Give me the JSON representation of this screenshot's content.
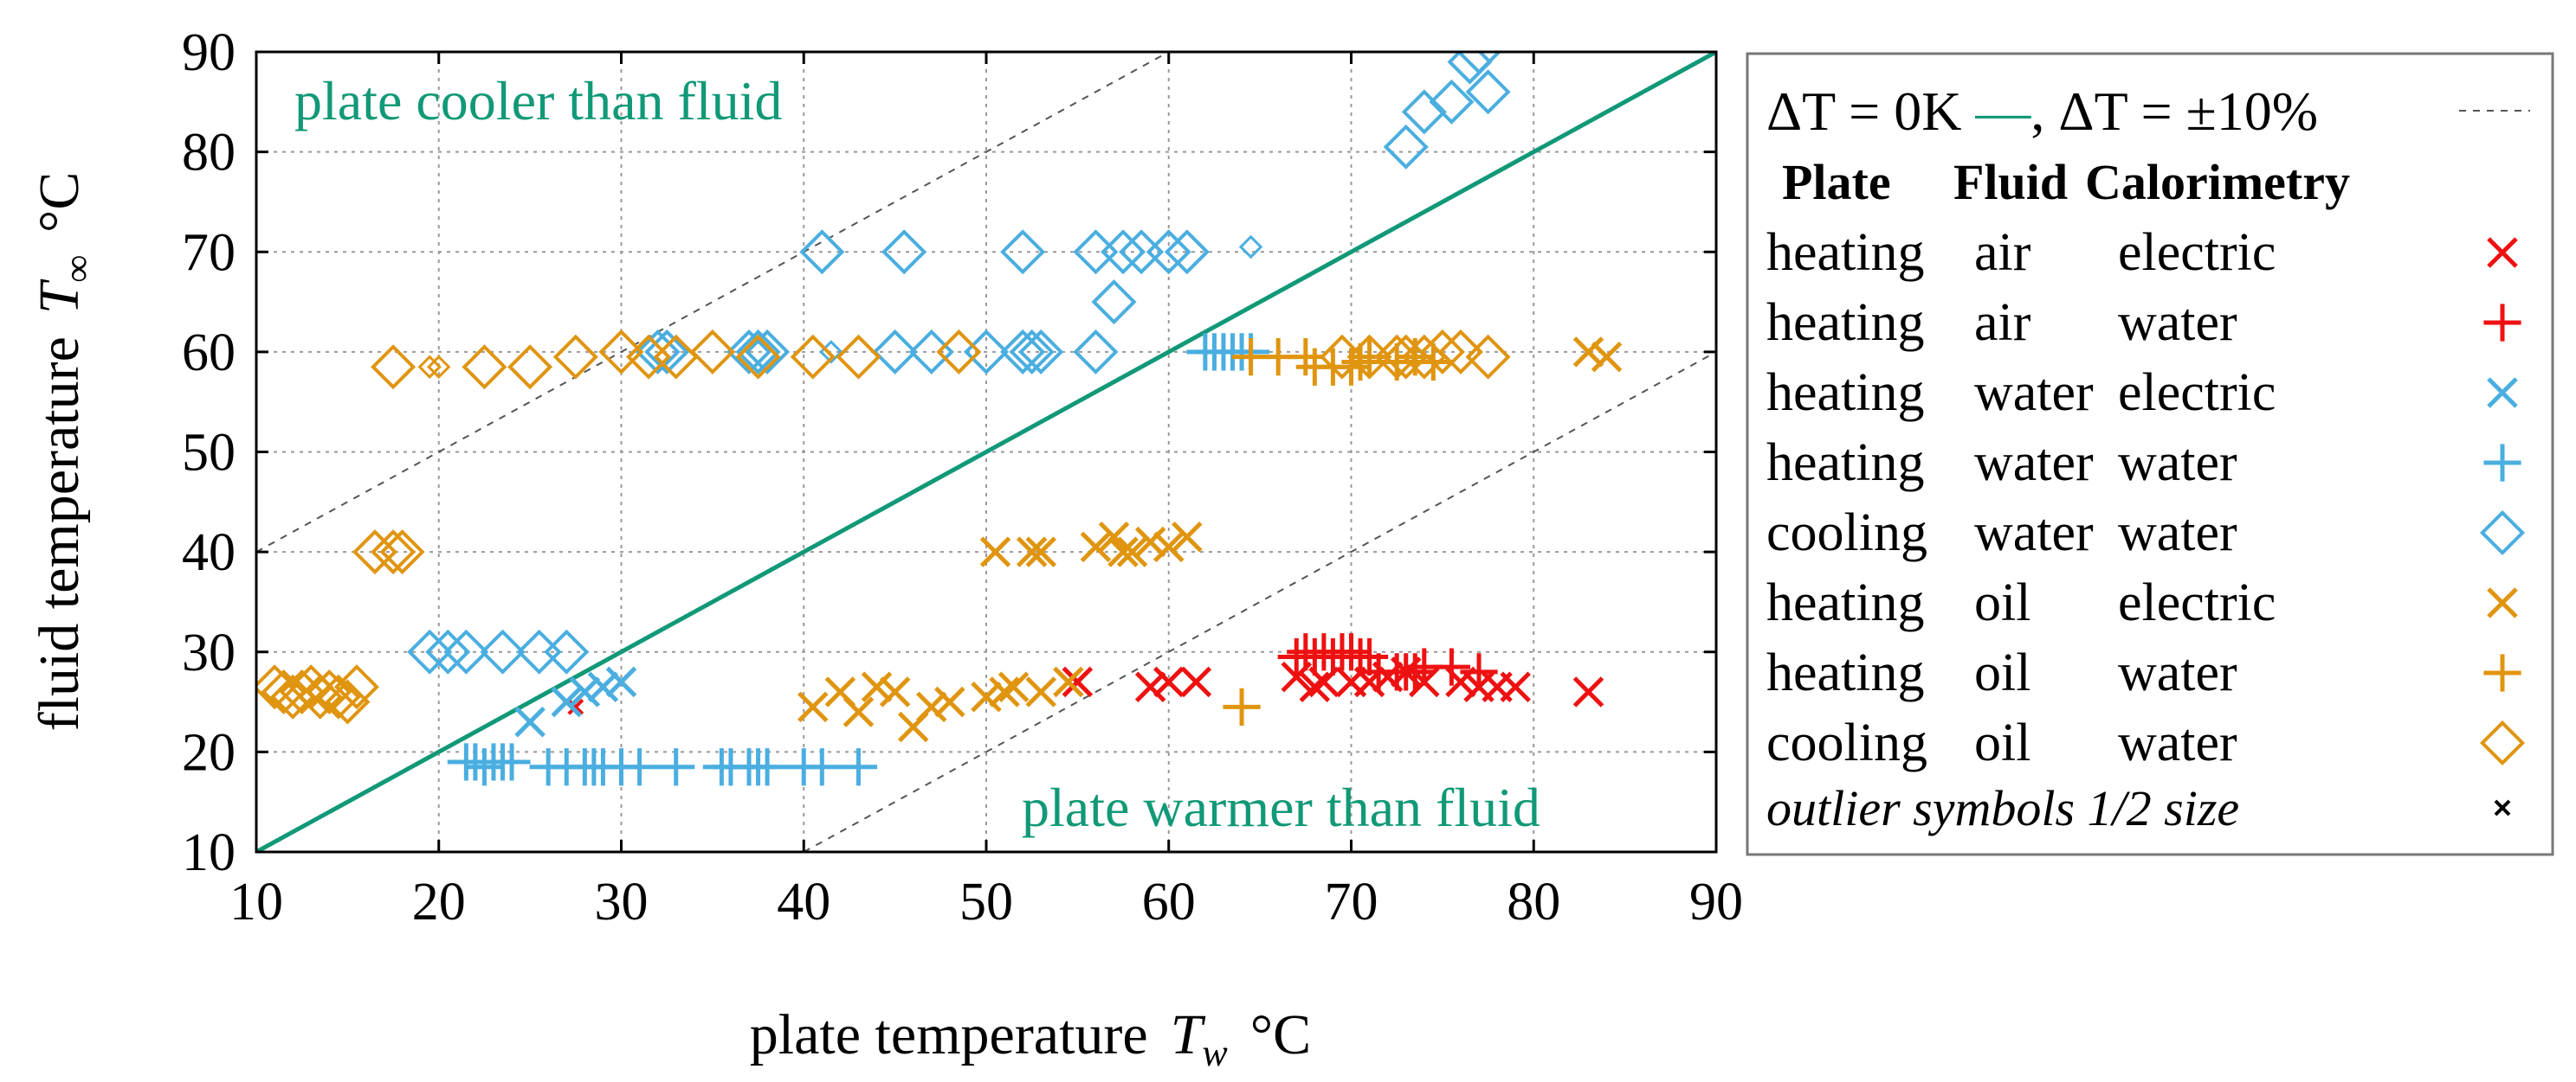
{
  "colors": {
    "grid": "#999999",
    "axis": "#000000",
    "identity_line": "#119977",
    "band_line": "#555555",
    "annotation": "#119977",
    "heating_air_electric": "#ee1111",
    "heating_air_water": "#ee1111",
    "heating_water_electric": "#4aaee0",
    "heating_water_water": "#4aaee0",
    "cooling_water_water": "#4aaee0",
    "heating_oil_electric": "#e09510",
    "heating_oil_water": "#e09510",
    "cooling_oil_water": "#e09510",
    "outlier_legend": "#000000"
  },
  "chart_data": {
    "type": "scatter",
    "xlabel": {
      "prefix": "plate temperature",
      "symbol": "T",
      "subscript": "w",
      "unit": "°C"
    },
    "ylabel": {
      "prefix": "fluid temperature",
      "symbol": "T",
      "subscript": "∞",
      "unit": "°C"
    },
    "xlim": [
      10,
      90
    ],
    "ylim": [
      10,
      90
    ],
    "xticks": [
      10,
      20,
      30,
      40,
      50,
      60,
      70,
      80,
      90
    ],
    "yticks": [
      10,
      20,
      30,
      40,
      50,
      60,
      70,
      80,
      90
    ],
    "grid": true,
    "annotations": [
      {
        "text": "plate cooler than fluid",
        "x": 12,
        "y": 85
      },
      {
        "text": "plate warmer than fluid",
        "x": 52,
        "y": 14
      }
    ],
    "reference_lines": [
      {
        "name": "identity",
        "label": "ΔT = 0K",
        "x": [
          10,
          90
        ],
        "y": [
          10,
          90
        ],
        "style": "solid"
      },
      {
        "name": "upper_band",
        "label": "ΔT = ±10%",
        "x": [
          10,
          90
        ],
        "y": [
          40,
          120
        ],
        "style": "dashed"
      },
      {
        "name": "lower_band",
        "label": "ΔT = ±10%",
        "x": [
          40,
          90
        ],
        "y": [
          10,
          60
        ],
        "style": "dashed"
      }
    ],
    "legend": {
      "position": "right-outside",
      "title_line": {
        "delta1": "ΔT",
        "eq1": " = 0K ",
        "dash": "—",
        "comma": ", ",
        "delta2": "ΔT",
        "eq2": " = ±10%"
      },
      "header": {
        "col1": "Plate",
        "col2": "Fluid",
        "col3": "Calorimetry"
      },
      "entries": [
        {
          "c1": "heating",
          "c2": "air",
          "c3": "electric",
          "marker": "x",
          "series": "heating_air_electric"
        },
        {
          "c1": "heating",
          "c2": "air",
          "c3": "water",
          "marker": "plus",
          "series": "heating_air_water"
        },
        {
          "c1": "heating",
          "c2": "water",
          "c3": "electric",
          "marker": "x",
          "series": "heating_water_electric"
        },
        {
          "c1": "heating",
          "c2": "water",
          "c3": "water",
          "marker": "plus",
          "series": "heating_water_water"
        },
        {
          "c1": "cooling",
          "c2": "water",
          "c3": "water",
          "marker": "diamond",
          "series": "cooling_water_water"
        },
        {
          "c1": "heating",
          "c2": "oil",
          "c3": "electric",
          "marker": "x",
          "series": "heating_oil_electric"
        },
        {
          "c1": "heating",
          "c2": "oil",
          "c3": "water",
          "marker": "plus",
          "series": "heating_oil_water"
        },
        {
          "c1": "cooling",
          "c2": "oil",
          "c3": "water",
          "marker": "diamond",
          "series": "cooling_oil_water"
        }
      ],
      "outlier_note": "outlier symbols 1/2 size"
    },
    "series": [
      {
        "name": "heating_air_electric",
        "marker": "x",
        "points": [
          [
            55,
            27
          ],
          [
            59,
            26.5
          ],
          [
            60,
            27
          ],
          [
            61.5,
            27
          ],
          [
            67,
            27.5
          ],
          [
            68,
            26.5
          ],
          [
            68.5,
            27
          ],
          [
            70,
            27
          ],
          [
            71,
            27
          ],
          [
            72,
            27.5
          ],
          [
            73,
            28
          ],
          [
            74,
            27
          ],
          [
            76,
            27
          ],
          [
            77,
            26.5
          ],
          [
            78,
            26.5
          ],
          [
            79,
            26.5
          ],
          [
            83,
            26
          ]
        ],
        "outliers": [
          [
            27.5,
            24.5
          ]
        ]
      },
      {
        "name": "heating_air_water",
        "marker": "plus",
        "points": [
          [
            67,
            29.5
          ],
          [
            67.5,
            30
          ],
          [
            68,
            29.5
          ],
          [
            68.5,
            30
          ],
          [
            69,
            29.5
          ],
          [
            69.5,
            30
          ],
          [
            70,
            30
          ],
          [
            70.5,
            29.5
          ],
          [
            71,
            29.5
          ],
          [
            71.5,
            28
          ],
          [
            72.5,
            28
          ],
          [
            73,
            28
          ],
          [
            73.5,
            28
          ],
          [
            74,
            28.5
          ],
          [
            75.5,
            28.5
          ],
          [
            77,
            28
          ]
        ]
      },
      {
        "name": "heating_water_electric",
        "marker": "x",
        "points": [
          [
            25,
            23
          ],
          [
            27,
            25
          ],
          [
            28,
            26
          ],
          [
            29,
            26.5
          ],
          [
            30,
            27
          ]
        ]
      },
      {
        "name": "heating_water_water",
        "marker": "plus",
        "points": [
          [
            21.5,
            19
          ],
          [
            22,
            19
          ],
          [
            22.5,
            18.5
          ],
          [
            23,
            19
          ],
          [
            23.5,
            19
          ],
          [
            24,
            19
          ],
          [
            26,
            18.5
          ],
          [
            27,
            18.5
          ],
          [
            28,
            18.5
          ],
          [
            28.5,
            18.5
          ],
          [
            29,
            18.5
          ],
          [
            30,
            18.5
          ],
          [
            31,
            18.5
          ],
          [
            33,
            18.5
          ],
          [
            35.5,
            18.5
          ],
          [
            36,
            18.5
          ],
          [
            37,
            18.5
          ],
          [
            37.5,
            18.5
          ],
          [
            38,
            18.5
          ],
          [
            40,
            18.5
          ],
          [
            41,
            18.5
          ],
          [
            43,
            18.5
          ],
          [
            62,
            60
          ],
          [
            62.5,
            60
          ],
          [
            63,
            60
          ],
          [
            63.5,
            60
          ],
          [
            64,
            60
          ],
          [
            64.5,
            60
          ]
        ]
      },
      {
        "name": "cooling_water_water",
        "marker": "diamond",
        "points": [
          [
            19.5,
            30
          ],
          [
            20.5,
            30
          ],
          [
            21.5,
            30
          ],
          [
            23.5,
            30
          ],
          [
            25.5,
            30
          ],
          [
            27,
            30
          ],
          [
            32,
            60
          ],
          [
            32.5,
            60
          ],
          [
            37,
            60
          ],
          [
            37.5,
            60
          ],
          [
            38,
            60
          ],
          [
            45,
            60
          ],
          [
            47,
            60
          ],
          [
            50,
            60
          ],
          [
            52,
            60
          ],
          [
            52.5,
            60
          ],
          [
            53,
            60
          ],
          [
            56,
            60
          ],
          [
            41,
            70
          ],
          [
            45.5,
            70
          ],
          [
            52,
            70
          ],
          [
            56,
            70
          ],
          [
            57.5,
            70
          ],
          [
            58.5,
            70
          ],
          [
            60,
            70
          ],
          [
            61,
            70
          ],
          [
            57,
            65
          ],
          [
            73,
            80.5
          ],
          [
            74,
            84
          ],
          [
            75.5,
            85
          ],
          [
            76.5,
            89
          ],
          [
            77,
            90
          ],
          [
            77.5,
            86
          ]
        ],
        "outliers": [
          [
            41.5,
            60
          ],
          [
            64.5,
            70.5
          ]
        ]
      },
      {
        "name": "heating_oil_electric",
        "marker": "x",
        "points": [
          [
            40.5,
            24.5
          ],
          [
            42,
            26
          ],
          [
            43,
            24
          ],
          [
            44,
            26.5
          ],
          [
            45,
            26
          ],
          [
            46,
            22.5
          ],
          [
            47,
            24.5
          ],
          [
            48,
            25
          ],
          [
            50,
            25.5
          ],
          [
            51,
            26
          ],
          [
            51.5,
            26.5
          ],
          [
            53,
            26
          ],
          [
            54.5,
            27
          ],
          [
            50.5,
            40
          ],
          [
            52.5,
            40
          ],
          [
            53,
            40
          ],
          [
            56,
            40.5
          ],
          [
            57,
            41.5
          ],
          [
            57.5,
            40
          ],
          [
            58,
            40
          ],
          [
            59,
            41
          ],
          [
            60,
            40.5
          ],
          [
            61,
            41.5
          ],
          [
            83,
            60
          ],
          [
            84,
            59.5
          ]
        ]
      },
      {
        "name": "heating_oil_water",
        "marker": "plus",
        "points": [
          [
            64,
            24.5
          ],
          [
            64.5,
            59.5
          ],
          [
            66,
            59.5
          ],
          [
            67.5,
            59.5
          ],
          [
            68,
            58.5
          ],
          [
            69,
            58.5
          ],
          [
            70,
            58.5
          ],
          [
            70.5,
            59
          ],
          [
            71,
            59.5
          ],
          [
            72.5,
            59
          ],
          [
            73.5,
            59.5
          ],
          [
            74.5,
            59
          ]
        ]
      },
      {
        "name": "cooling_oil_water",
        "marker": "diamond",
        "points": [
          [
            11,
            26.5
          ],
          [
            11.5,
            26
          ],
          [
            12,
            25.5
          ],
          [
            12.5,
            26
          ],
          [
            13,
            26.5
          ],
          [
            13.5,
            25.5
          ],
          [
            14,
            26
          ],
          [
            14.5,
            25.5
          ],
          [
            15,
            25
          ],
          [
            15.5,
            26.5
          ],
          [
            16.5,
            40
          ],
          [
            17.5,
            40
          ],
          [
            18,
            40
          ],
          [
            17.5,
            58.5
          ],
          [
            22.5,
            58.5
          ],
          [
            25,
            58.5
          ],
          [
            27.5,
            59.5
          ],
          [
            30,
            60
          ],
          [
            31.5,
            59.5
          ],
          [
            33,
            59.5
          ],
          [
            35,
            60
          ],
          [
            37.5,
            59.5
          ],
          [
            40.5,
            59.5
          ],
          [
            43,
            59.5
          ],
          [
            48.5,
            60
          ],
          [
            69.5,
            59.5
          ],
          [
            71,
            59.5
          ],
          [
            72.5,
            59.5
          ],
          [
            73,
            59.5
          ],
          [
            74,
            59.5
          ],
          [
            75,
            60
          ],
          [
            76,
            60
          ],
          [
            77.5,
            59.5
          ]
        ],
        "outliers": [
          [
            19.5,
            58.5
          ],
          [
            20,
            58.5
          ]
        ]
      }
    ]
  }
}
